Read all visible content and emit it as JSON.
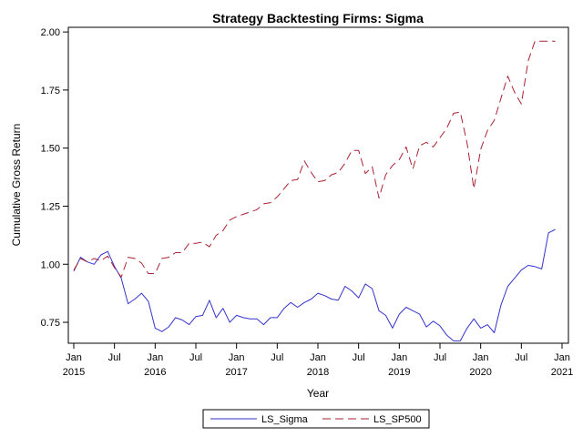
{
  "chart_data": {
    "type": "line",
    "title": "Strategy Backtesting  Firms: Sigma",
    "xlabel": "Year",
    "ylabel": "Cumulative Gross Return",
    "xlim": [
      "2015-01",
      "2021-01"
    ],
    "ylim": [
      0.66,
      2.02
    ],
    "yticks": [
      0.75,
      1.0,
      1.25,
      1.5,
      1.75,
      2.0
    ],
    "ytick_labels": [
      "0.75",
      "1.00",
      "1.25",
      "1.50",
      "1.75",
      "2.00"
    ],
    "xticks": [
      "2015-01",
      "2015-07",
      "2016-01",
      "2016-07",
      "2017-01",
      "2017-07",
      "2018-01",
      "2018-07",
      "2019-01",
      "2019-07",
      "2020-01",
      "2020-07",
      "2021-01"
    ],
    "xtick_labels": [
      {
        "month": "Jan",
        "year": "2015"
      },
      {
        "month": "Jul",
        "year": ""
      },
      {
        "month": "Jan",
        "year": "2016"
      },
      {
        "month": "Jul",
        "year": ""
      },
      {
        "month": "Jan",
        "year": "2017"
      },
      {
        "month": "Jul",
        "year": ""
      },
      {
        "month": "Jan",
        "year": "2018"
      },
      {
        "month": "Jul",
        "year": ""
      },
      {
        "month": "Jan",
        "year": "2019"
      },
      {
        "month": "Jul",
        "year": ""
      },
      {
        "month": "Jan",
        "year": "2020"
      },
      {
        "month": "Jul",
        "year": ""
      },
      {
        "month": "Jan",
        "year": "2021"
      }
    ],
    "legend_position": "bottom",
    "grid": false,
    "series": [
      {
        "name": "LS_Sigma",
        "color": "#3333cc",
        "dash": "solid",
        "x": [
          "2015-01",
          "2015-02",
          "2015-03",
          "2015-04",
          "2015-05",
          "2015-06",
          "2015-07",
          "2015-08",
          "2015-09",
          "2015-10",
          "2015-11",
          "2015-12",
          "2016-01",
          "2016-02",
          "2016-03",
          "2016-04",
          "2016-05",
          "2016-06",
          "2016-07",
          "2016-08",
          "2016-09",
          "2016-10",
          "2016-11",
          "2016-12",
          "2017-01",
          "2017-02",
          "2017-03",
          "2017-04",
          "2017-05",
          "2017-06",
          "2017-07",
          "2017-08",
          "2017-09",
          "2017-10",
          "2017-11",
          "2017-12",
          "2018-01",
          "2018-02",
          "2018-03",
          "2018-04",
          "2018-05",
          "2018-06",
          "2018-07",
          "2018-08",
          "2018-09",
          "2018-10",
          "2018-11",
          "2018-12",
          "2019-01",
          "2019-02",
          "2019-03",
          "2019-04",
          "2019-05",
          "2019-06",
          "2019-07",
          "2019-08",
          "2019-09",
          "2019-10",
          "2019-11",
          "2019-12",
          "2020-01",
          "2020-02",
          "2020-03",
          "2020-04",
          "2020-05",
          "2020-06",
          "2020-07",
          "2020-08",
          "2020-09",
          "2020-10",
          "2020-11",
          "2020-12"
        ],
        "values": [
          0.97,
          1.03,
          1.01,
          1.0,
          1.04,
          1.055,
          0.99,
          0.94,
          0.83,
          0.85,
          0.875,
          0.84,
          0.725,
          0.71,
          0.73,
          0.77,
          0.76,
          0.74,
          0.775,
          0.78,
          0.845,
          0.77,
          0.81,
          0.75,
          0.78,
          0.77,
          0.765,
          0.765,
          0.74,
          0.77,
          0.77,
          0.81,
          0.835,
          0.815,
          0.835,
          0.85,
          0.875,
          0.865,
          0.85,
          0.845,
          0.905,
          0.885,
          0.855,
          0.915,
          0.895,
          0.8,
          0.78,
          0.725,
          0.785,
          0.815,
          0.8,
          0.785,
          0.73,
          0.755,
          0.735,
          0.695,
          0.67,
          0.67,
          0.725,
          0.765,
          0.725,
          0.74,
          0.705,
          0.825,
          0.905,
          0.94,
          0.975,
          0.995,
          0.99,
          0.98,
          1.135,
          1.15
        ]
      },
      {
        "name": "LS_SP500",
        "color": "#aa2233",
        "dash": "long-dash",
        "x": [
          "2015-01",
          "2015-02",
          "2015-03",
          "2015-04",
          "2015-05",
          "2015-06",
          "2015-07",
          "2015-08",
          "2015-09",
          "2015-10",
          "2015-11",
          "2015-12",
          "2016-01",
          "2016-02",
          "2016-03",
          "2016-04",
          "2016-05",
          "2016-06",
          "2016-07",
          "2016-08",
          "2016-09",
          "2016-10",
          "2016-11",
          "2016-12",
          "2017-01",
          "2017-02",
          "2017-03",
          "2017-04",
          "2017-05",
          "2017-06",
          "2017-07",
          "2017-08",
          "2017-09",
          "2017-10",
          "2017-11",
          "2017-12",
          "2018-01",
          "2018-02",
          "2018-03",
          "2018-04",
          "2018-05",
          "2018-06",
          "2018-07",
          "2018-08",
          "2018-09",
          "2018-10",
          "2018-11",
          "2018-12",
          "2019-01",
          "2019-02",
          "2019-03",
          "2019-04",
          "2019-05",
          "2019-06",
          "2019-07",
          "2019-08",
          "2019-09",
          "2019-10",
          "2019-11",
          "2019-12",
          "2020-01",
          "2020-02",
          "2020-03",
          "2020-04",
          "2020-05",
          "2020-06",
          "2020-07",
          "2020-08",
          "2020-09",
          "2020-10",
          "2020-11",
          "2020-12"
        ],
        "values": [
          0.975,
          1.025,
          1.01,
          1.025,
          1.015,
          1.035,
          0.985,
          0.945,
          1.03,
          1.025,
          1.005,
          0.96,
          0.96,
          1.025,
          1.03,
          1.05,
          1.05,
          1.09,
          1.09,
          1.095,
          1.075,
          1.125,
          1.145,
          1.19,
          1.205,
          1.215,
          1.225,
          1.235,
          1.26,
          1.265,
          1.29,
          1.325,
          1.36,
          1.365,
          1.445,
          1.395,
          1.355,
          1.36,
          1.385,
          1.395,
          1.435,
          1.49,
          1.49,
          1.39,
          1.42,
          1.285,
          1.385,
          1.425,
          1.45,
          1.505,
          1.41,
          1.51,
          1.525,
          1.505,
          1.545,
          1.585,
          1.65,
          1.655,
          1.52,
          1.325,
          1.495,
          1.575,
          1.62,
          1.715,
          1.81,
          1.74,
          1.69,
          1.875,
          1.96,
          1.96,
          1.96,
          1.96
        ]
      }
    ]
  }
}
